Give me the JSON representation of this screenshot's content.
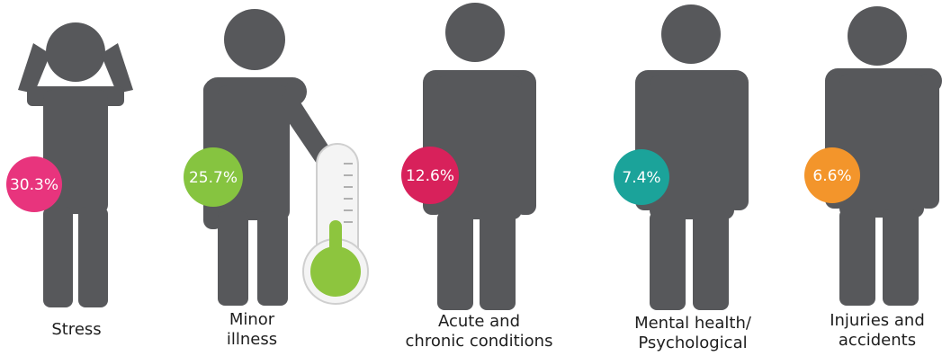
{
  "items": [
    {
      "label_lines": [
        "Stress"
      ],
      "percent": "30.3%",
      "color": "#e8347d"
    },
    {
      "label_lines": [
        "Minor",
        "illness"
      ],
      "percent": "25.7%",
      "color": "#86c440"
    },
    {
      "label_lines": [
        "Acute and",
        "chronic conditions"
      ],
      "percent": "12.6%",
      "color": "#d8215b"
    },
    {
      "label_lines": [
        "Mental health/",
        "Psychological"
      ],
      "percent": "7.4%",
      "color": "#1ba39a"
    },
    {
      "label_lines": [
        "Injuries and",
        "accidents"
      ],
      "percent": "6.6%",
      "color": "#f3952b"
    }
  ],
  "figure_color": "#57585b",
  "thermometer": {
    "fill_color": "#8dc53e"
  }
}
